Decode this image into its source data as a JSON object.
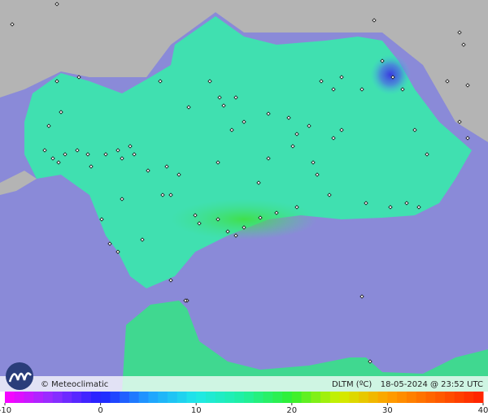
{
  "brand": "© Meteoclimatic",
  "variable": "DLTM (ºC)",
  "timestamp": "18-05-2024 @ 23:52 UTC",
  "scale": {
    "lim": [
      -10,
      40
    ],
    "ticks": [
      -10,
      0,
      10,
      20,
      30,
      40
    ]
  }
}
